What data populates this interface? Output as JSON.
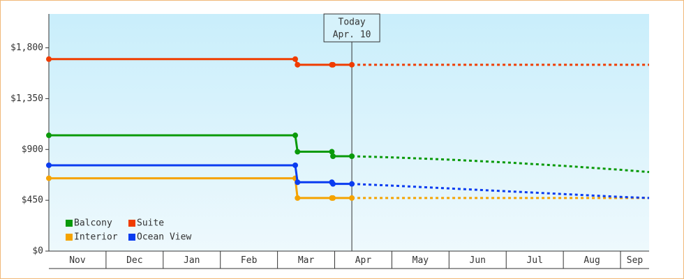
{
  "chart_data": {
    "type": "line",
    "x": [
      0,
      4.31,
      4.35,
      4.95,
      4.97,
      5.3,
      6,
      7,
      8,
      9,
      10,
      10.5
    ],
    "xlim": [
      0,
      10.5
    ],
    "xticks": [
      {
        "value": 0,
        "label": "Nov"
      },
      {
        "value": 1,
        "label": "Dec"
      },
      {
        "value": 2,
        "label": "Jan"
      },
      {
        "value": 3,
        "label": "Feb"
      },
      {
        "value": 4,
        "label": "Mar"
      },
      {
        "value": 5,
        "label": "Apr"
      },
      {
        "value": 6,
        "label": "May"
      },
      {
        "value": 7,
        "label": "Jun"
      },
      {
        "value": 8,
        "label": "Jul"
      },
      {
        "value": 9,
        "label": "Aug"
      },
      {
        "value": 10,
        "label": "Sep"
      }
    ],
    "ylim": [
      0,
      2100
    ],
    "yticks": [
      {
        "value": 0,
        "label": "$0"
      },
      {
        "value": 450,
        "label": "$450"
      },
      {
        "value": 900,
        "label": "$900"
      },
      {
        "value": 1350,
        "label": "$1,350"
      },
      {
        "value": 1800,
        "label": "$1,800"
      }
    ],
    "today": {
      "x": 5.3,
      "label": "Today",
      "date": "Apr. 10"
    },
    "legend": "lower left",
    "series": [
      {
        "name": "Balcony",
        "color": "#0a9a0a",
        "values": [
          1025,
          1025,
          880,
          880,
          840,
          840,
          830,
          810,
          785,
          755,
          720,
          700
        ]
      },
      {
        "name": "Interior",
        "color": "#f5a300",
        "values": [
          645,
          645,
          470,
          470,
          470,
          470,
          470,
          470,
          470,
          470,
          470,
          470
        ]
      },
      {
        "name": "Suite",
        "color": "#f03c00",
        "values": [
          1700,
          1700,
          1650,
          1650,
          1650,
          1650,
          1650,
          1650,
          1650,
          1650,
          1650,
          1650
        ]
      },
      {
        "name": "Ocean View",
        "color": "#0a3cf0",
        "values": [
          760,
          760,
          610,
          610,
          595,
          595,
          580,
          555,
          530,
          505,
          480,
          470
        ]
      }
    ]
  }
}
